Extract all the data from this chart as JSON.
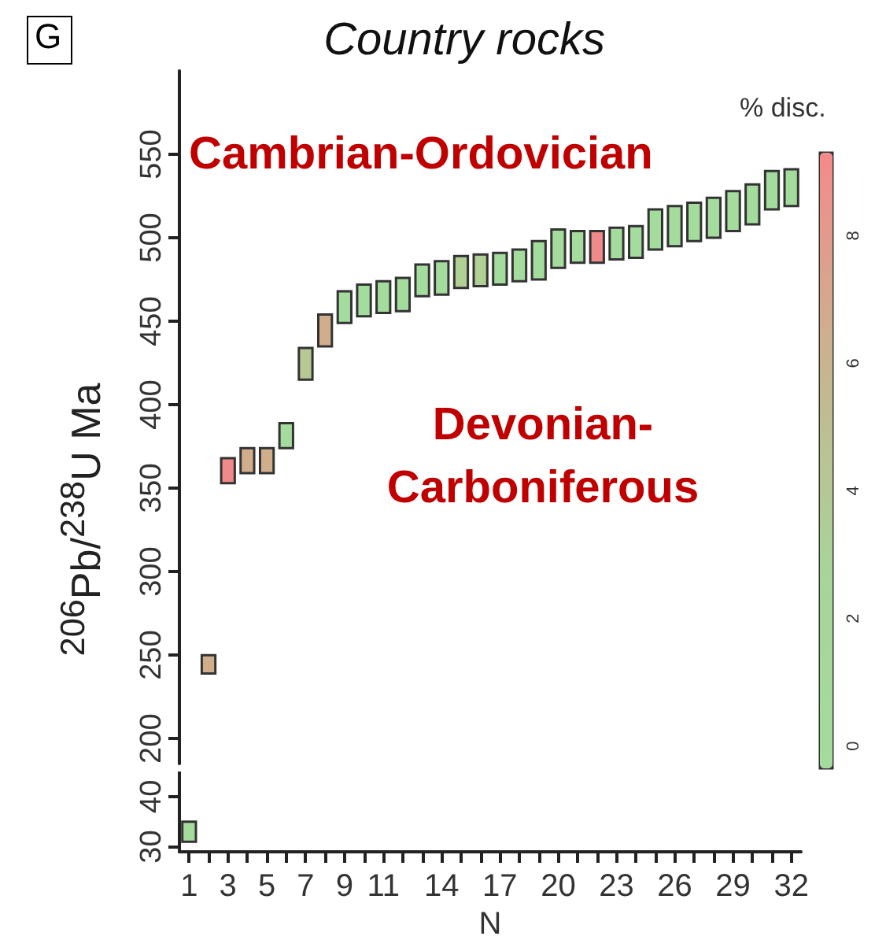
{
  "chart_data": [
    {
      "type": "bar",
      "title": "Country rocks",
      "ylabel": "$^{206}$Pb/$^{238}$U Ma",
      "clabel": "% disc.",
      "annotations": [
        "G",
        "Cambrian-Ordovician",
        "Devonian-\nCarboniferous"
      ],
      "categories": [
        "1",
        null,
        "3",
        null,
        "5",
        null,
        "7",
        null,
        "9",
        null,
        "11",
        null,
        null,
        "14",
        null,
        null,
        "17",
        null,
        null,
        "20",
        null,
        null,
        "23",
        null,
        null,
        "26",
        null,
        null,
        "29",
        null,
        null,
        "32"
      ],
      "base": [
        null,
        239,
        353,
        359,
        359,
        374,
        415,
        435,
        449,
        453,
        455,
        456,
        465,
        466,
        470,
        471,
        472,
        474,
        475,
        482,
        485,
        485,
        487,
        488,
        493,
        495,
        498,
        500,
        504,
        508,
        517,
        519
      ],
      "values": [
        null,
        11,
        15,
        15,
        15,
        15,
        19,
        19,
        19,
        19,
        19,
        20,
        19,
        20,
        19,
        19,
        19,
        19,
        23,
        23,
        19,
        19,
        19,
        19,
        24,
        24,
        23,
        24,
        24,
        24,
        23,
        22
      ],
      "colors": [
        null,
        "#d0ae8c",
        "#f08a8a",
        "#d0ae8c",
        "#d0ae8c",
        "#a3dc9c",
        "#b8c894",
        "#d0ae8c",
        "#a3dc9c",
        "#a3dc9c",
        "#a3dc9c",
        "#a3dc9c",
        "#a3dc9c",
        "#a3dc9c",
        "#b0d096",
        "#b0d096",
        "#a3dc9c",
        "#a3dc9c",
        "#a3dc9c",
        "#a3dc9c",
        "#a3dc9c",
        "#f08a8a",
        "#a3dc9c",
        "#a3dc9c",
        "#a3dc9c",
        "#a3dc9c",
        "#a3dc9c",
        "#a3dc9c",
        "#a3dc9c",
        "#a3dc9c",
        "#a3dc9c",
        "#a3dc9c"
      ],
      "clim": [
        -0.35,
        9.3
      ],
      "cticks": [
        0,
        2,
        4,
        6,
        8
      ],
      "ylim": [
        185,
        600
      ],
      "yticks": [
        200,
        250,
        300,
        350,
        400,
        450,
        500,
        550
      ],
      "tick_labels": "y",
      "grid": false
    },
    {
      "type": "bar",
      "xlabel": "N",
      "categories": [
        "1",
        null,
        "3",
        null,
        "5",
        null,
        "7",
        null,
        "9",
        null,
        "11",
        null,
        null,
        "14",
        null,
        null,
        "17",
        null,
        null,
        "20",
        null,
        null,
        "23",
        null,
        null,
        "26",
        null,
        null,
        "29",
        null,
        null,
        "32"
      ],
      "base": [
        31,
        null,
        null,
        null,
        null,
        null,
        null,
        null,
        null,
        null,
        null,
        null,
        null,
        null,
        null,
        null,
        null,
        null,
        null,
        null,
        null,
        null,
        null,
        null,
        null,
        null,
        null,
        null,
        null,
        null,
        null,
        null
      ],
      "values": [
        4,
        null,
        null,
        null,
        null,
        null,
        null,
        null,
        null,
        null,
        null,
        null,
        null,
        null,
        null,
        null,
        null,
        null,
        null,
        null,
        null,
        null,
        null,
        null,
        null,
        null,
        null,
        null,
        null,
        null,
        null,
        null
      ],
      "colors": [
        "#a3dc9c",
        null,
        null,
        null,
        null,
        null,
        null,
        null,
        null,
        null,
        null,
        null,
        null,
        null,
        null,
        null,
        null,
        null,
        null,
        null,
        null,
        null,
        null,
        null,
        null,
        null,
        null,
        null,
        null,
        null,
        null,
        null
      ],
      "ylim": [
        29,
        45
      ],
      "yticks": [
        30,
        40
      ],
      "grid": false
    }
  ]
}
